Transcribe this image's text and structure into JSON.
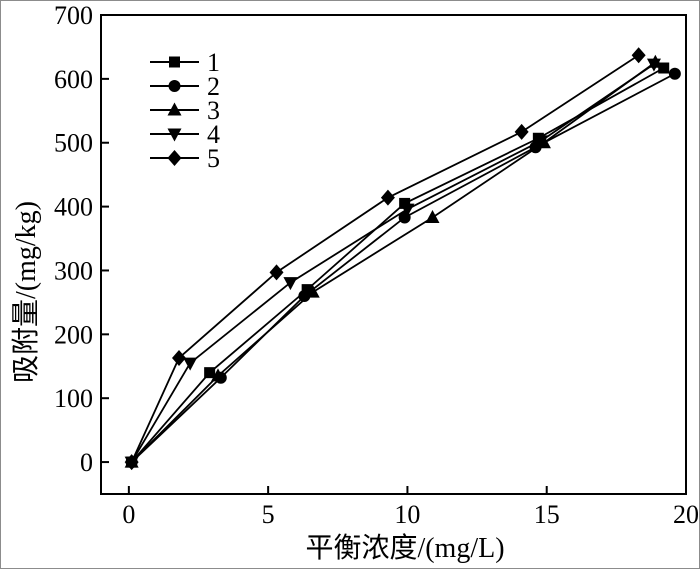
{
  "figure": {
    "background": "#ffffff",
    "border_color": "#8c8c8c",
    "axis_color": "#000000",
    "text_color": "#000000"
  },
  "chart_data": {
    "type": "line",
    "title": "",
    "xlabel": "平衡浓度/(mg/L)",
    "ylabel": "吸附量/(mg/kg)",
    "xlim": [
      -1,
      20
    ],
    "ylim": [
      -50,
      700
    ],
    "xticks": [
      0,
      5,
      10,
      15,
      20
    ],
    "yticks": [
      0,
      100,
      200,
      300,
      400,
      500,
      600,
      700
    ],
    "grid": false,
    "legend": {
      "position": "upper-left-inside"
    },
    "series": [
      {
        "name": "1",
        "marker": "square",
        "color": "#000000",
        "points": [
          [
            0.1,
            0
          ],
          [
            2.9,
            140
          ],
          [
            6.4,
            270
          ],
          [
            9.9,
            405
          ],
          [
            14.7,
            507
          ],
          [
            19.2,
            617
          ]
        ]
      },
      {
        "name": "2",
        "marker": "circle",
        "color": "#000000",
        "points": [
          [
            0.1,
            0
          ],
          [
            3.3,
            132
          ],
          [
            6.3,
            260
          ],
          [
            9.9,
            383
          ],
          [
            14.6,
            493
          ],
          [
            19.6,
            608
          ]
        ]
      },
      {
        "name": "3",
        "marker": "triangle-up",
        "color": "#000000",
        "points": [
          [
            0.1,
            0
          ],
          [
            3.2,
            135
          ],
          [
            6.6,
            266
          ],
          [
            10.9,
            383
          ],
          [
            14.9,
            500
          ],
          [
            18.9,
            626
          ]
        ]
      },
      {
        "name": "4",
        "marker": "triangle-down",
        "color": "#000000",
        "points": [
          [
            0.1,
            0
          ],
          [
            2.2,
            155
          ],
          [
            5.8,
            281
          ],
          [
            10.0,
            396
          ],
          [
            14.8,
            503
          ],
          [
            18.85,
            623
          ]
        ]
      },
      {
        "name": "5",
        "marker": "diamond",
        "color": "#000000",
        "points": [
          [
            0.1,
            0
          ],
          [
            1.8,
            163
          ],
          [
            5.3,
            297
          ],
          [
            9.3,
            414
          ],
          [
            14.1,
            517
          ],
          [
            18.3,
            637
          ]
        ]
      }
    ]
  }
}
